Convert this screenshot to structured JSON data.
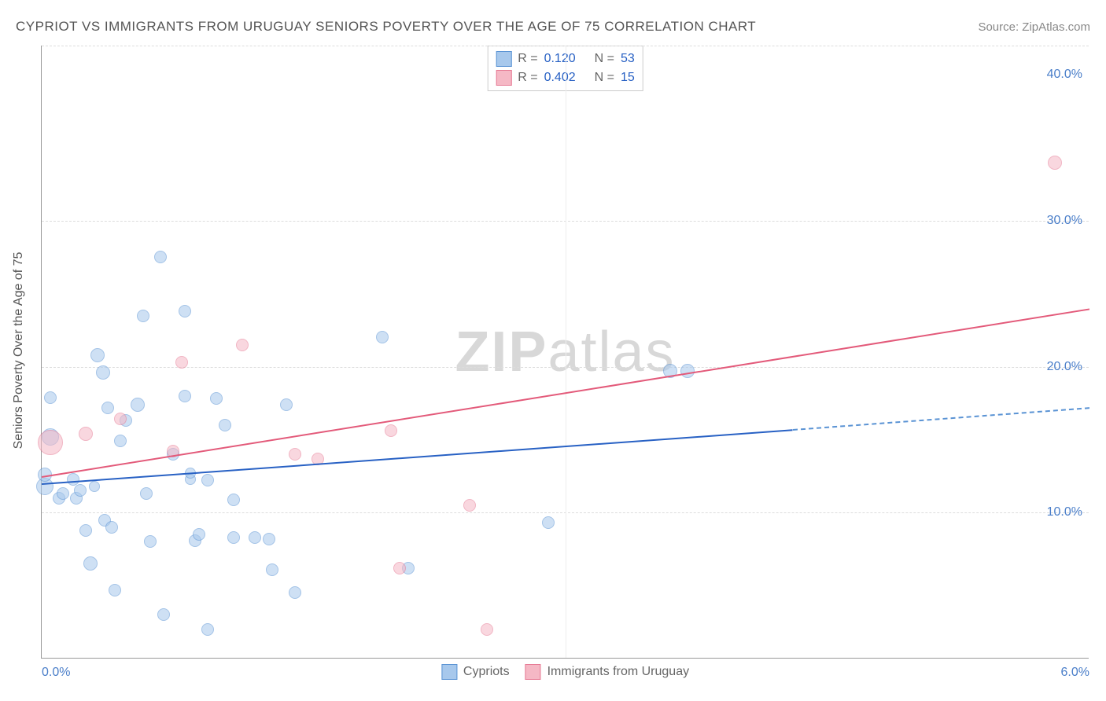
{
  "title": "CYPRIOT VS IMMIGRANTS FROM URUGUAY SENIORS POVERTY OVER THE AGE OF 75 CORRELATION CHART",
  "source": "Source: ZipAtlas.com",
  "watermark_bold": "ZIP",
  "watermark_light": "atlas",
  "y_axis_label": "Seniors Poverty Over the Age of 75",
  "chart": {
    "type": "scatter",
    "xlim": [
      0.0,
      6.0
    ],
    "ylim": [
      0.0,
      42.0
    ],
    "x_ticks": [
      {
        "val": 0.0,
        "label": "0.0%",
        "align": "left"
      },
      {
        "val": 6.0,
        "label": "6.0%",
        "align": "right"
      }
    ],
    "y_ticks": [
      {
        "val": 10.0,
        "label": "10.0%"
      },
      {
        "val": 20.0,
        "label": "20.0%"
      },
      {
        "val": 30.0,
        "label": "30.0%"
      },
      {
        "val": 40.0,
        "label": "40.0%"
      }
    ],
    "grid_h": [
      10.0,
      20.0,
      30.0,
      42.0
    ],
    "grid_v": [
      3.0
    ],
    "background_color": "#ffffff",
    "grid_color": "#dddddd",
    "series": [
      {
        "name": "Cypriots",
        "fill": "#a7c8ec",
        "stroke": "#5a93d4",
        "fill_opacity": 0.55,
        "r_value": "0.120",
        "n_value": "53",
        "marker_radius": 9,
        "trend": {
          "x1": 0.0,
          "y1": 12.0,
          "x2": 4.3,
          "y2": 15.7,
          "color": "#2861c4"
        },
        "trend_ext": {
          "x1": 4.3,
          "y1": 15.7,
          "x2": 6.0,
          "y2": 17.2,
          "color": "#5a93d4"
        },
        "points": [
          {
            "x": 0.02,
            "y": 11.8,
            "r": 11
          },
          {
            "x": 0.02,
            "y": 12.6,
            "r": 9
          },
          {
            "x": 0.05,
            "y": 17.9,
            "r": 8
          },
          {
            "x": 0.05,
            "y": 15.2,
            "r": 11
          },
          {
            "x": 0.1,
            "y": 11.0,
            "r": 8
          },
          {
            "x": 0.12,
            "y": 11.3,
            "r": 8
          },
          {
            "x": 0.18,
            "y": 12.3,
            "r": 8
          },
          {
            "x": 0.2,
            "y": 11.0,
            "r": 8
          },
          {
            "x": 0.22,
            "y": 11.5,
            "r": 8
          },
          {
            "x": 0.25,
            "y": 8.8,
            "r": 8
          },
          {
            "x": 0.28,
            "y": 6.5,
            "r": 9
          },
          {
            "x": 0.3,
            "y": 11.8,
            "r": 7
          },
          {
            "x": 0.32,
            "y": 20.8,
            "r": 9
          },
          {
            "x": 0.35,
            "y": 19.6,
            "r": 9
          },
          {
            "x": 0.36,
            "y": 9.5,
            "r": 8
          },
          {
            "x": 0.38,
            "y": 17.2,
            "r": 8
          },
          {
            "x": 0.4,
            "y": 9.0,
            "r": 8
          },
          {
            "x": 0.42,
            "y": 4.7,
            "r": 8
          },
          {
            "x": 0.45,
            "y": 14.9,
            "r": 8
          },
          {
            "x": 0.48,
            "y": 16.3,
            "r": 8
          },
          {
            "x": 0.55,
            "y": 17.4,
            "r": 9
          },
          {
            "x": 0.58,
            "y": 23.5,
            "r": 8
          },
          {
            "x": 0.6,
            "y": 11.3,
            "r": 8
          },
          {
            "x": 0.62,
            "y": 8.0,
            "r": 8
          },
          {
            "x": 0.68,
            "y": 27.5,
            "r": 8
          },
          {
            "x": 0.7,
            "y": 3.0,
            "r": 8
          },
          {
            "x": 0.75,
            "y": 14.0,
            "r": 8
          },
          {
            "x": 0.82,
            "y": 23.8,
            "r": 8
          },
          {
            "x": 0.82,
            "y": 18.0,
            "r": 8
          },
          {
            "x": 0.85,
            "y": 12.3,
            "r": 7
          },
          {
            "x": 0.85,
            "y": 12.7,
            "r": 7
          },
          {
            "x": 0.88,
            "y": 8.1,
            "r": 8
          },
          {
            "x": 0.9,
            "y": 8.5,
            "r": 8
          },
          {
            "x": 0.95,
            "y": 12.2,
            "r": 8
          },
          {
            "x": 0.95,
            "y": 2.0,
            "r": 8
          },
          {
            "x": 1.0,
            "y": 17.8,
            "r": 8
          },
          {
            "x": 1.05,
            "y": 16.0,
            "r": 8
          },
          {
            "x": 1.1,
            "y": 8.3,
            "r": 8
          },
          {
            "x": 1.1,
            "y": 10.9,
            "r": 8
          },
          {
            "x": 1.22,
            "y": 8.3,
            "r": 8
          },
          {
            "x": 1.3,
            "y": 8.2,
            "r": 8
          },
          {
            "x": 1.32,
            "y": 6.1,
            "r": 8
          },
          {
            "x": 1.4,
            "y": 17.4,
            "r": 8
          },
          {
            "x": 1.45,
            "y": 4.5,
            "r": 8
          },
          {
            "x": 1.95,
            "y": 22.0,
            "r": 8
          },
          {
            "x": 2.1,
            "y": 6.2,
            "r": 8
          },
          {
            "x": 2.9,
            "y": 9.3,
            "r": 8
          },
          {
            "x": 3.6,
            "y": 19.7,
            "r": 9
          },
          {
            "x": 3.7,
            "y": 19.7,
            "r": 9
          }
        ]
      },
      {
        "name": "Immigrants from Uruguay",
        "fill": "#f5b8c5",
        "stroke": "#e67a94",
        "fill_opacity": 0.55,
        "r_value": "0.402",
        "n_value": "15",
        "marker_radius": 9,
        "trend": {
          "x1": 0.0,
          "y1": 12.5,
          "x2": 6.0,
          "y2": 24.0,
          "color": "#e35a7a"
        },
        "points": [
          {
            "x": 0.05,
            "y": 14.8,
            "r": 16
          },
          {
            "x": 0.25,
            "y": 15.4,
            "r": 9
          },
          {
            "x": 0.45,
            "y": 16.4,
            "r": 8
          },
          {
            "x": 0.75,
            "y": 14.2,
            "r": 8
          },
          {
            "x": 0.8,
            "y": 20.3,
            "r": 8
          },
          {
            "x": 1.15,
            "y": 21.5,
            "r": 8
          },
          {
            "x": 1.45,
            "y": 14.0,
            "r": 8
          },
          {
            "x": 1.58,
            "y": 13.7,
            "r": 8
          },
          {
            "x": 2.0,
            "y": 15.6,
            "r": 8
          },
          {
            "x": 2.05,
            "y": 6.2,
            "r": 8
          },
          {
            "x": 2.45,
            "y": 10.5,
            "r": 8
          },
          {
            "x": 2.55,
            "y": 2.0,
            "r": 8
          },
          {
            "x": 5.8,
            "y": 34.0,
            "r": 9
          }
        ]
      }
    ]
  },
  "stats_legend": [
    {
      "fill": "#a7c8ec",
      "stroke": "#5a93d4",
      "r": "0.120",
      "n": "53"
    },
    {
      "fill": "#f5b8c5",
      "stroke": "#e67a94",
      "r": "0.402",
      "n": "15"
    }
  ],
  "bottom_legend": [
    {
      "fill": "#a7c8ec",
      "stroke": "#5a93d4",
      "label": "Cypriots"
    },
    {
      "fill": "#f5b8c5",
      "stroke": "#e67a94",
      "label": "Immigrants from Uruguay"
    }
  ]
}
